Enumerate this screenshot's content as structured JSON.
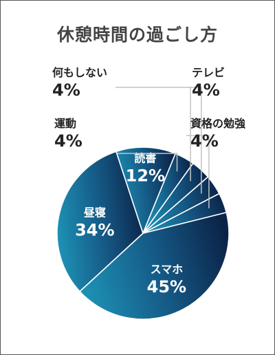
{
  "chart_data": {
    "type": "pie",
    "title": "休憩時間の過ごし方",
    "slices": [
      {
        "label": "スマホ",
        "value": 45,
        "display": "45%"
      },
      {
        "label": "昼寝",
        "value": 34,
        "display": "34%"
      },
      {
        "label": "読書",
        "value": 12,
        "display": "12%"
      },
      {
        "label": "運動",
        "value": 4,
        "display": "4%"
      },
      {
        "label": "何もしない",
        "value": 4,
        "display": "4%"
      },
      {
        "label": "テレビ",
        "value": 4,
        "display": "4%"
      },
      {
        "label": "資格の勉強",
        "value": 4,
        "display": "4%"
      }
    ],
    "colors": {
      "gradient_dark": "#0b2348",
      "gradient_mid": "#155a86",
      "gradient_light": "#1d8fb3",
      "slice_border": "#ffffff",
      "leader_line": "#c4c4c4",
      "inside_text": "#ffffff",
      "outside_text": "#222222",
      "title_text": "#444444"
    }
  }
}
